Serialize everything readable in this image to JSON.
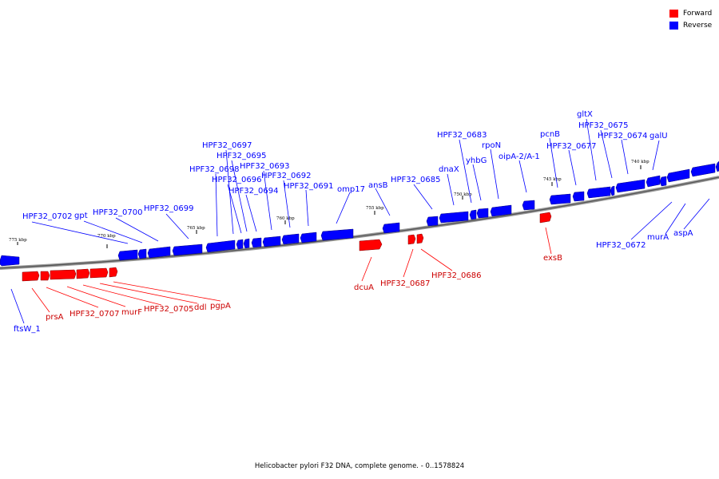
{
  "legend": {
    "forward_label": "Forward",
    "reverse_label": "Reverse",
    "forward_color": "#ff0000",
    "reverse_color": "#0000ff"
  },
  "caption": "Helicobacter pylori F32 DNA, complete genome. - 0..1578824",
  "ticks": [
    "775 kbp",
    "770 kbp",
    "765 kbp",
    "760 kbp",
    "755 kbp",
    "750 kbp",
    "745 kbp",
    "740 kbp"
  ],
  "genes": {
    "reverse": [
      "HPF32_0702",
      "gpt",
      "HPF32_0700",
      "HPF32_0699",
      "HPF32_0698",
      "HPF32_0697",
      "HPF32_0696",
      "HPF32_0695",
      "HPF32_0694",
      "HPF32_0693",
      "HPF32_0692",
      "HPF32_0691",
      "omp17",
      "ansB",
      "HPF32_0685",
      "dnaX",
      "HPF32_0683",
      "yhbG",
      "rpoN",
      "oipA-2/A-1",
      "pcnB",
      "HPF32_0677",
      "gltX",
      "HPF32_0675",
      "HPF32_0674",
      "galU",
      "HPF32_0672",
      "murA",
      "aspA",
      "ftsW_1"
    ],
    "forward": [
      "prsA",
      "HPF32_0707",
      "murF",
      "HPF32_0705",
      "ddl",
      "pgpA",
      "dcuA",
      "HPF32_0687",
      "HPF32_0686",
      "exsB"
    ]
  }
}
